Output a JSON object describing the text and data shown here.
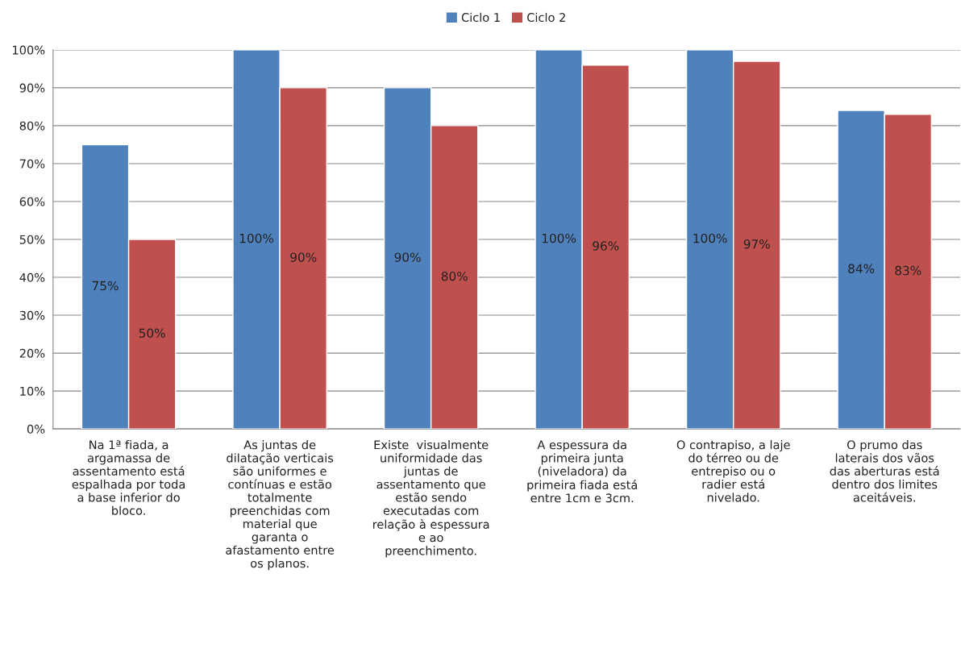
{
  "chart_data": {
    "type": "bar",
    "categories": [
      "Na 1ª fiada, a\nargamassa de\nassentamento está\nespalhada por toda\na base inferior do\nbloco.",
      "As juntas de\ndilatação verticais\nsão uniformes e\ncontínuas e estão\ntotalmente\npreenchidas com\nmaterial que\ngaranta o\nafastamento entre\nos planos.",
      "Existe  visualmente\nuniformidade das\njuntas de\nassentamento que\nestão sendo\nexecutadas com\nrelação à espessura\ne ao\npreenchimento.",
      "A espessura da\nprimeira junta\n(niveladora) da\nprimeira fiada está\nentre 1cm e 3cm.",
      "O contrapiso, a laje\ndo térreo ou de\nentrepiso ou o\nradier está\nnivelado.",
      "O prumo das\nlaterais dos vãos\ndas aberturas está\ndentro dos limites\naceitáveis."
    ],
    "series": [
      {
        "name": "Ciclo 1",
        "color": "#4f81bd",
        "values": [
          75,
          100,
          90,
          100,
          100,
          84
        ],
        "value_labels": [
          "75%",
          "100%",
          "90%",
          "100%",
          "100%",
          "84%"
        ]
      },
      {
        "name": "Ciclo 2",
        "color": "#c0504d",
        "values": [
          50,
          90,
          80,
          96,
          97,
          83
        ],
        "value_labels": [
          "50%",
          "90%",
          "80%",
          "96%",
          "97%",
          "83%"
        ]
      }
    ],
    "ylim": [
      0,
      100
    ],
    "yticks": [
      {
        "value": 0,
        "label": "0%"
      },
      {
        "value": 10,
        "label": "10%"
      },
      {
        "value": 20,
        "label": "20%"
      },
      {
        "value": 30,
        "label": "30%"
      },
      {
        "value": 40,
        "label": "40%"
      },
      {
        "value": 50,
        "label": "50%"
      },
      {
        "value": 60,
        "label": "60%"
      },
      {
        "value": 70,
        "label": "70%"
      },
      {
        "value": 80,
        "label": "80%"
      },
      {
        "value": 90,
        "label": "90%"
      },
      {
        "value": 100,
        "label": "100%"
      }
    ],
    "grid": "y",
    "legend": "top"
  }
}
